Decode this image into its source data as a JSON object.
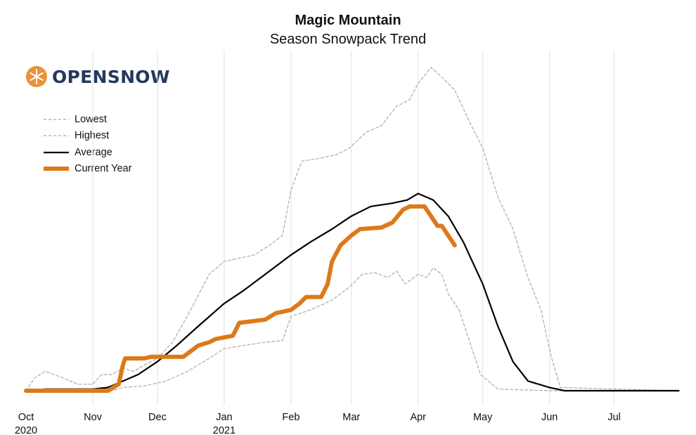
{
  "header": {
    "title": "Magic Mountain",
    "subtitle": "Season Snowpack Trend"
  },
  "logo": {
    "text_open": "OPEN",
    "text_snow": "SNOW",
    "color": "#24395f",
    "accent": "#e8923a"
  },
  "legend": {
    "items": [
      {
        "label": "Lowest",
        "style": "dashed",
        "color": "#aaaaaa"
      },
      {
        "label": "Highest",
        "style": "dashed",
        "color": "#aaaaaa"
      },
      {
        "label": "Average",
        "style": "solid",
        "color": "#000000"
      },
      {
        "label": "Current Year",
        "style": "thick",
        "color": "#dc7a1a"
      }
    ]
  },
  "chart_data": {
    "type": "line",
    "title": "Magic Mountain",
    "subtitle": "Season Snowpack Trend",
    "x_ticks": [
      {
        "label": "Oct",
        "sub": "2020",
        "date": "2020-10-01"
      },
      {
        "label": "Nov",
        "sub": "",
        "date": "2020-11-01"
      },
      {
        "label": "Dec",
        "sub": "",
        "date": "2020-12-01"
      },
      {
        "label": "Jan",
        "sub": "2021",
        "date": "2021-01-01"
      },
      {
        "label": "Feb",
        "sub": "",
        "date": "2021-02-01"
      },
      {
        "label": "Mar",
        "sub": "",
        "date": "2021-03-01"
      },
      {
        "label": "Apr",
        "sub": "",
        "date": "2021-04-01"
      },
      {
        "label": "May",
        "sub": "",
        "date": "2021-05-01"
      },
      {
        "label": "Jun",
        "sub": "",
        "date": "2021-06-01"
      },
      {
        "label": "Jul",
        "sub": "",
        "date": "2021-07-01"
      }
    ],
    "x_range": [
      "2020-10-01",
      "2021-07-31"
    ],
    "y_range": [
      0,
      100
    ],
    "y_axis_labels_shown": false,
    "grid": "vertical",
    "legend_position": "top-left",
    "series": [
      {
        "name": "Lowest",
        "style": "dashed",
        "color": "#aaaaaa",
        "points": [
          [
            "2020-10-01",
            0
          ],
          [
            "2020-11-10",
            0
          ],
          [
            "2020-11-15",
            1
          ],
          [
            "2020-11-25",
            1.5
          ],
          [
            "2020-12-05",
            3
          ],
          [
            "2020-12-15",
            6
          ],
          [
            "2020-12-25",
            10
          ],
          [
            "2021-01-01",
            13
          ],
          [
            "2021-01-10",
            14
          ],
          [
            "2021-01-20",
            15
          ],
          [
            "2021-01-28",
            15.5
          ],
          [
            "2021-02-01",
            23
          ],
          [
            "2021-02-10",
            25
          ],
          [
            "2021-02-20",
            28
          ],
          [
            "2021-02-28",
            32
          ],
          [
            "2021-03-06",
            36
          ],
          [
            "2021-03-12",
            36.5
          ],
          [
            "2021-03-18",
            35
          ],
          [
            "2021-03-22",
            37
          ],
          [
            "2021-03-26",
            33
          ],
          [
            "2021-04-01",
            36
          ],
          [
            "2021-04-05",
            35
          ],
          [
            "2021-04-08",
            38
          ],
          [
            "2021-04-12",
            36
          ],
          [
            "2021-04-15",
            30
          ],
          [
            "2021-04-20",
            25
          ],
          [
            "2021-04-25",
            15
          ],
          [
            "2021-04-30",
            5
          ],
          [
            "2021-05-08",
            0.5
          ],
          [
            "2021-06-01",
            0
          ],
          [
            "2021-07-31",
            0
          ]
        ]
      },
      {
        "name": "Highest",
        "style": "dashed",
        "color": "#aaaaaa",
        "points": [
          [
            "2020-10-01",
            0
          ],
          [
            "2020-10-05",
            4
          ],
          [
            "2020-10-10",
            6
          ],
          [
            "2020-10-18",
            4
          ],
          [
            "2020-10-25",
            2
          ],
          [
            "2020-11-01",
            2
          ],
          [
            "2020-11-05",
            5
          ],
          [
            "2020-11-10",
            5
          ],
          [
            "2020-11-15",
            7
          ],
          [
            "2020-11-20",
            6
          ],
          [
            "2020-11-25",
            8
          ],
          [
            "2020-12-01",
            10
          ],
          [
            "2020-12-08",
            15
          ],
          [
            "2020-12-14",
            22
          ],
          [
            "2020-12-18",
            27
          ],
          [
            "2020-12-25",
            36
          ],
          [
            "2021-01-01",
            40
          ],
          [
            "2021-01-08",
            41
          ],
          [
            "2021-01-15",
            42
          ],
          [
            "2021-01-22",
            45
          ],
          [
            "2021-01-28",
            48
          ],
          [
            "2021-02-01",
            62
          ],
          [
            "2021-02-06",
            71
          ],
          [
            "2021-02-15",
            72
          ],
          [
            "2021-02-22",
            73
          ],
          [
            "2021-02-28",
            75
          ],
          [
            "2021-03-08",
            80
          ],
          [
            "2021-03-15",
            82
          ],
          [
            "2021-03-22",
            88
          ],
          [
            "2021-03-28",
            90
          ],
          [
            "2021-04-01",
            95
          ],
          [
            "2021-04-07",
            100
          ],
          [
            "2021-04-12",
            97
          ],
          [
            "2021-04-18",
            93
          ],
          [
            "2021-04-25",
            83
          ],
          [
            "2021-05-01",
            75
          ],
          [
            "2021-05-08",
            60
          ],
          [
            "2021-05-15",
            50
          ],
          [
            "2021-05-22",
            35
          ],
          [
            "2021-05-28",
            25
          ],
          [
            "2021-06-02",
            10
          ],
          [
            "2021-06-06",
            1
          ],
          [
            "2021-07-31",
            0
          ]
        ]
      },
      {
        "name": "Average",
        "style": "solid",
        "color": "#000000",
        "points": [
          [
            "2020-10-01",
            0
          ],
          [
            "2020-10-10",
            0.5
          ],
          [
            "2020-11-01",
            0.5
          ],
          [
            "2020-11-08",
            1
          ],
          [
            "2020-11-15",
            3
          ],
          [
            "2020-11-22",
            5
          ],
          [
            "2020-12-01",
            9
          ],
          [
            "2020-12-10",
            14
          ],
          [
            "2020-12-20",
            20
          ],
          [
            "2021-01-01",
            27
          ],
          [
            "2021-01-10",
            31
          ],
          [
            "2021-01-20",
            36
          ],
          [
            "2021-02-01",
            42
          ],
          [
            "2021-02-10",
            46
          ],
          [
            "2021-02-20",
            50
          ],
          [
            "2021-03-01",
            54
          ],
          [
            "2021-03-10",
            57
          ],
          [
            "2021-03-20",
            58
          ],
          [
            "2021-03-27",
            59
          ],
          [
            "2021-04-01",
            61
          ],
          [
            "2021-04-08",
            59
          ],
          [
            "2021-04-15",
            54
          ],
          [
            "2021-04-22",
            46
          ],
          [
            "2021-05-01",
            33
          ],
          [
            "2021-05-08",
            20
          ],
          [
            "2021-05-15",
            9
          ],
          [
            "2021-05-22",
            3
          ],
          [
            "2021-06-01",
            1
          ],
          [
            "2021-06-08",
            0
          ],
          [
            "2021-07-31",
            0
          ]
        ]
      },
      {
        "name": "Current Year",
        "style": "thick",
        "color": "#dc7a1a",
        "points": [
          [
            "2020-10-01",
            0
          ],
          [
            "2020-11-08",
            0
          ],
          [
            "2020-11-13",
            2
          ],
          [
            "2020-11-15",
            8
          ],
          [
            "2020-11-16",
            10
          ],
          [
            "2020-11-25",
            10
          ],
          [
            "2020-11-28",
            10.5
          ],
          [
            "2020-12-13",
            10.5
          ],
          [
            "2020-12-16",
            12
          ],
          [
            "2020-12-20",
            14
          ],
          [
            "2020-12-25",
            15
          ],
          [
            "2020-12-28",
            16
          ],
          [
            "2021-01-05",
            17
          ],
          [
            "2021-01-08",
            21
          ],
          [
            "2021-01-20",
            22
          ],
          [
            "2021-01-25",
            24
          ],
          [
            "2021-02-01",
            25
          ],
          [
            "2021-02-05",
            27
          ],
          [
            "2021-02-08",
            29
          ],
          [
            "2021-02-15",
            29
          ],
          [
            "2021-02-18",
            33
          ],
          [
            "2021-02-20",
            40
          ],
          [
            "2021-02-24",
            45
          ],
          [
            "2021-03-01",
            48
          ],
          [
            "2021-03-05",
            50
          ],
          [
            "2021-03-15",
            50.5
          ],
          [
            "2021-03-20",
            52
          ],
          [
            "2021-03-25",
            56
          ],
          [
            "2021-03-28",
            57
          ],
          [
            "2021-04-04",
            57
          ],
          [
            "2021-04-07",
            54
          ],
          [
            "2021-04-10",
            51
          ],
          [
            "2021-04-12",
            51
          ],
          [
            "2021-04-15",
            48
          ],
          [
            "2021-04-18",
            45
          ]
        ]
      }
    ]
  }
}
